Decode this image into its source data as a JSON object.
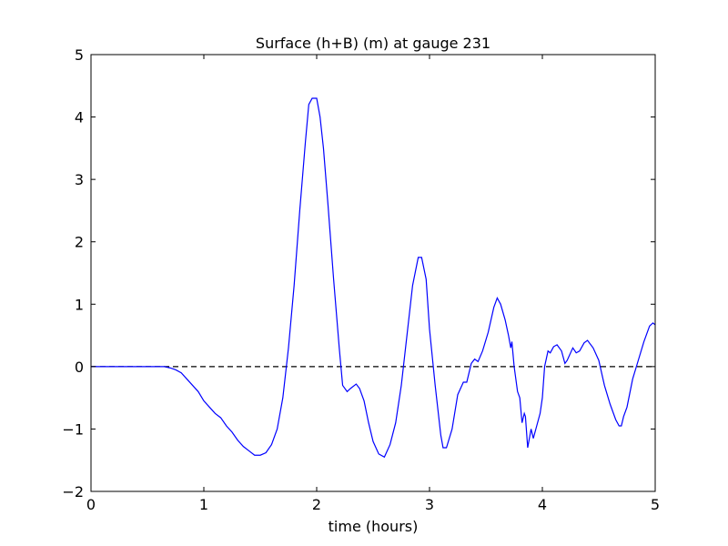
{
  "chart_data": {
    "type": "line",
    "title": "Surface (h+B) (m) at gauge 231",
    "xlabel": "time (hours)",
    "x": [
      0,
      0.5,
      0.65,
      0.7,
      0.75,
      0.8,
      0.85,
      0.9,
      0.95,
      1.0,
      1.05,
      1.1,
      1.15,
      1.2,
      1.25,
      1.3,
      1.35,
      1.4,
      1.45,
      1.5,
      1.55,
      1.6,
      1.65,
      1.7,
      1.75,
      1.8,
      1.85,
      1.9,
      1.93,
      1.96,
      2.0,
      2.03,
      2.06,
      2.1,
      2.15,
      2.2,
      2.23,
      2.27,
      2.3,
      2.35,
      2.38,
      2.42,
      2.46,
      2.5,
      2.55,
      2.6,
      2.65,
      2.7,
      2.75,
      2.8,
      2.85,
      2.9,
      2.93,
      2.97,
      3.0,
      3.05,
      3.1,
      3.12,
      3.15,
      3.2,
      3.25,
      3.3,
      3.33,
      3.37,
      3.4,
      3.43,
      3.47,
      3.52,
      3.57,
      3.6,
      3.63,
      3.67,
      3.7,
      3.72,
      3.73,
      3.75,
      3.78,
      3.8,
      3.82,
      3.84,
      3.85,
      3.87,
      3.9,
      3.92,
      3.95,
      3.98,
      4.0,
      4.02,
      4.05,
      4.07,
      4.1,
      4.13,
      4.17,
      4.2,
      4.22,
      4.27,
      4.3,
      4.33,
      4.37,
      4.4,
      4.45,
      4.5,
      4.55,
      4.6,
      4.65,
      4.68,
      4.7,
      4.72,
      4.75,
      4.8,
      4.85,
      4.9,
      4.95,
      4.98,
      5.0
    ],
    "values": [
      0,
      0,
      0,
      -0.02,
      -0.05,
      -0.1,
      -0.2,
      -0.3,
      -0.4,
      -0.55,
      -0.65,
      -0.75,
      -0.82,
      -0.95,
      -1.05,
      -1.18,
      -1.28,
      -1.35,
      -1.42,
      -1.42,
      -1.38,
      -1.25,
      -1.0,
      -0.5,
      0.3,
      1.3,
      2.5,
      3.6,
      4.2,
      4.3,
      4.3,
      4.0,
      3.5,
      2.6,
      1.4,
      0.3,
      -0.3,
      -0.4,
      -0.35,
      -0.28,
      -0.35,
      -0.55,
      -0.9,
      -1.2,
      -1.4,
      -1.45,
      -1.25,
      -0.9,
      -0.3,
      0.5,
      1.3,
      1.75,
      1.75,
      1.4,
      0.6,
      -0.3,
      -1.1,
      -1.3,
      -1.3,
      -1.0,
      -0.45,
      -0.25,
      -0.25,
      0.05,
      0.12,
      0.08,
      0.25,
      0.55,
      0.95,
      1.1,
      1.0,
      0.75,
      0.5,
      0.3,
      0.4,
      0.0,
      -0.4,
      -0.5,
      -0.9,
      -0.75,
      -0.8,
      -1.3,
      -1.0,
      -1.15,
      -0.95,
      -0.75,
      -0.5,
      0.0,
      0.25,
      0.22,
      0.32,
      0.35,
      0.25,
      0.05,
      0.1,
      0.3,
      0.22,
      0.25,
      0.38,
      0.42,
      0.3,
      0.1,
      -0.3,
      -0.6,
      -0.85,
      -0.95,
      -0.95,
      -0.8,
      -0.65,
      -0.2,
      0.1,
      0.4,
      0.65,
      0.7,
      0.67
    ],
    "color": "#0000ff",
    "reference_line": {
      "y": 0,
      "style": "dashed",
      "color": "#000000"
    },
    "xlim": [
      0,
      5
    ],
    "xticks": [
      0,
      1,
      2,
      3,
      4,
      5
    ],
    "ylim": [
      -2,
      5
    ],
    "yticks": [
      {
        "value": -2,
        "label": "−2"
      },
      {
        "value": -1,
        "label": "−1"
      },
      0,
      1,
      2,
      3,
      4,
      5
    ],
    "grid": false
  }
}
